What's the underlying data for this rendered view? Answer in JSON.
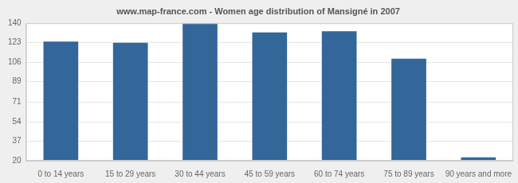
{
  "chart_data": {
    "type": "bar",
    "title": "www.map-france.com - Women age distribution of Mansigné in 2007",
    "categories": [
      "0 to 14 years",
      "15 to 29 years",
      "30 to 44 years",
      "45 to 59 years",
      "60 to 74 years",
      "75 to 89 years",
      "90 years and more"
    ],
    "values": [
      124,
      123,
      140,
      132,
      133,
      109,
      23
    ],
    "color": "#336699",
    "ylim": [
      20,
      140
    ],
    "yticks": [
      20,
      37,
      54,
      71,
      89,
      106,
      123,
      140
    ],
    "grid": true
  }
}
